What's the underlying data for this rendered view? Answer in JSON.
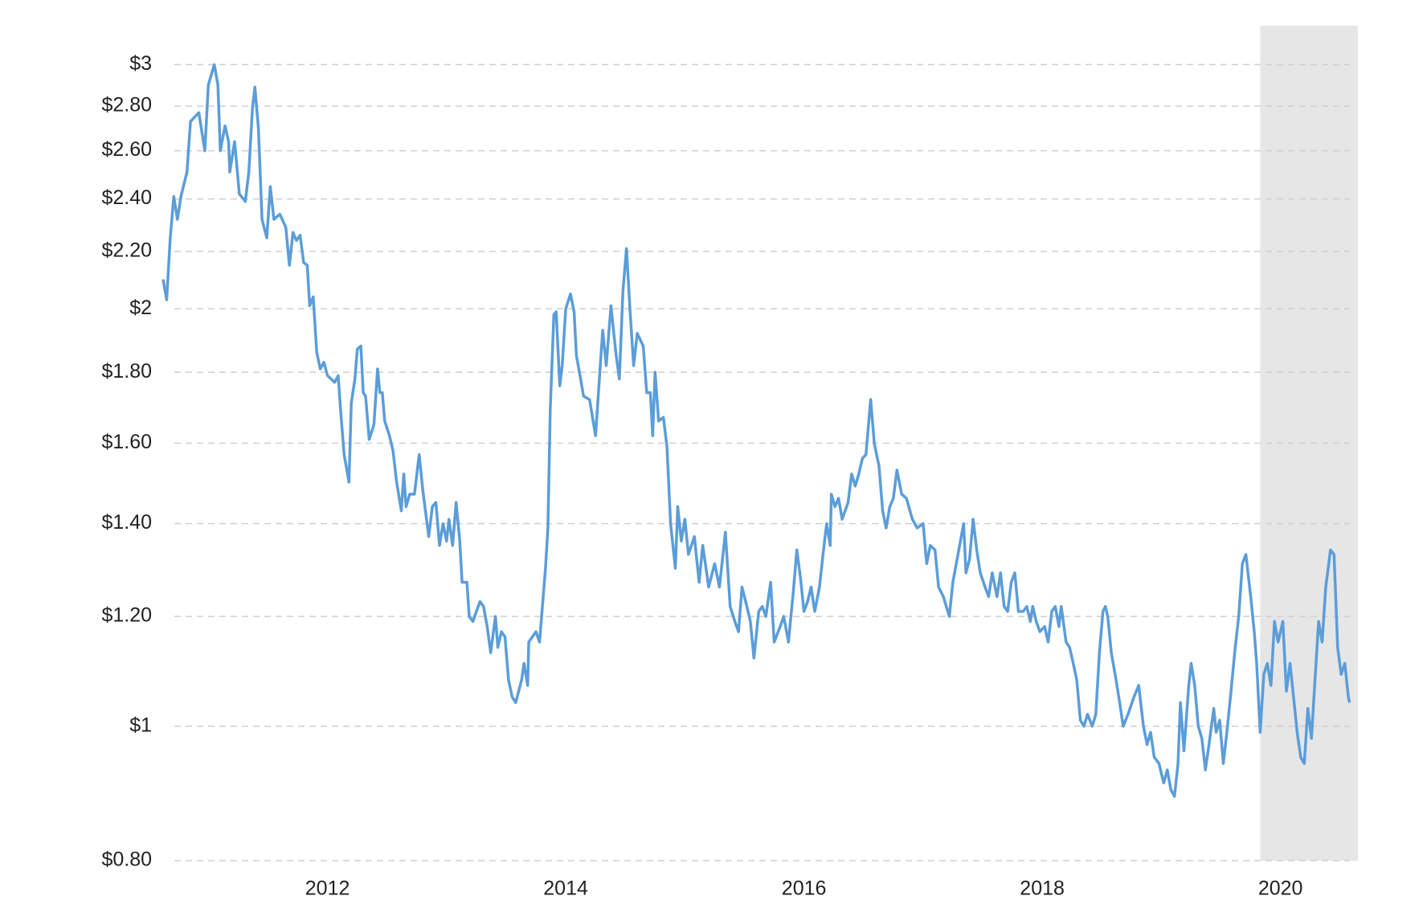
{
  "chart_data": {
    "type": "line",
    "x": [
      2010.62,
      2010.65,
      2010.68,
      2010.71,
      2010.74,
      2010.77,
      2010.82,
      2010.85,
      2010.92,
      2010.97,
      2011.0,
      2011.05,
      2011.08,
      2011.1,
      2011.14,
      2011.17,
      2011.18,
      2011.22,
      2011.26,
      2011.31,
      2011.34,
      2011.37,
      2011.39,
      2011.42,
      2011.45,
      2011.49,
      2011.52,
      2011.55,
      2011.6,
      2011.65,
      2011.68,
      2011.71,
      2011.74,
      2011.77,
      2011.8,
      2011.83,
      2011.85,
      2011.88,
      2011.91,
      2011.94,
      2011.97,
      2012.0,
      2012.06,
      2012.09,
      2012.11,
      2012.14,
      2012.18,
      2012.2,
      2012.23,
      2012.25,
      2012.28,
      2012.3,
      2012.32,
      2012.35,
      2012.39,
      2012.42,
      2012.44,
      2012.46,
      2012.48,
      2012.52,
      2012.55,
      2012.58,
      2012.62,
      2012.64,
      2012.66,
      2012.69,
      2012.73,
      2012.77,
      2012.8,
      2012.85,
      2012.88,
      2012.91,
      2012.94,
      2012.97,
      2013.0,
      2013.02,
      2013.05,
      2013.08,
      2013.11,
      2013.13,
      2013.17,
      2013.19,
      2013.22,
      2013.25,
      2013.28,
      2013.31,
      2013.34,
      2013.37,
      2013.41,
      2013.43,
      2013.46,
      2013.49,
      2013.52,
      2013.55,
      2013.58,
      2013.63,
      2013.65,
      2013.68,
      2013.69,
      2013.72,
      2013.75,
      2013.78,
      2013.83,
      2013.85,
      2013.87,
      2013.9,
      2013.92,
      2013.95,
      2013.97,
      2014.0,
      2014.04,
      2014.07,
      2014.09,
      2014.12,
      2014.15,
      2014.2,
      2014.25,
      2014.29,
      2014.31,
      2014.34,
      2014.38,
      2014.42,
      2014.45,
      2014.48,
      2014.51,
      2014.54,
      2014.57,
      2014.6,
      2014.65,
      2014.68,
      2014.71,
      2014.73,
      2014.75,
      2014.78,
      2014.82,
      2014.85,
      2014.88,
      2014.92,
      2014.94,
      2014.97,
      2015.0,
      2015.03,
      2015.08,
      2015.12,
      2015.15,
      2015.2,
      2015.25,
      2015.29,
      2015.34,
      2015.38,
      2015.42,
      2015.45,
      2015.48,
      2015.52,
      2015.55,
      2015.58,
      2015.62,
      2015.65,
      2015.68,
      2015.72,
      2015.75,
      2015.8,
      2015.83,
      2015.87,
      2015.91,
      2015.94,
      2015.97,
      2016.0,
      2016.03,
      2016.06,
      2016.09,
      2016.13,
      2016.16,
      2016.19,
      2016.22,
      2016.23,
      2016.26,
      2016.29,
      2016.32,
      2016.37,
      2016.4,
      2016.43,
      2016.46,
      2016.49,
      2016.52,
      2016.56,
      2016.59,
      2016.63,
      2016.66,
      2016.69,
      2016.72,
      2016.75,
      2016.78,
      2016.82,
      2016.86,
      2016.91,
      2016.95,
      2017.0,
      2017.03,
      2017.06,
      2017.1,
      2017.13,
      2017.17,
      2017.22,
      2017.25,
      2017.3,
      2017.34,
      2017.36,
      2017.39,
      2017.42,
      2017.45,
      2017.48,
      2017.52,
      2017.55,
      2017.58,
      2017.62,
      2017.65,
      2017.68,
      2017.71,
      2017.74,
      2017.77,
      2017.8,
      2017.84,
      2017.87,
      2017.9,
      2017.92,
      2017.95,
      2017.98,
      2018.02,
      2018.05,
      2018.08,
      2018.11,
      2018.14,
      2018.16,
      2018.2,
      2018.23,
      2018.26,
      2018.29,
      2018.32,
      2018.35,
      2018.38,
      2018.42,
      2018.45,
      2018.48,
      2018.51,
      2018.53,
      2018.55,
      2018.58,
      2018.62,
      2018.65,
      2018.68,
      2018.72,
      2018.77,
      2018.81,
      2018.85,
      2018.88,
      2018.91,
      2018.94,
      2018.98,
      2019.02,
      2019.05,
      2019.08,
      2019.11,
      2019.14,
      2019.16,
      2019.19,
      2019.23,
      2019.25,
      2019.28,
      2019.31,
      2019.34,
      2019.37,
      2019.4,
      2019.44,
      2019.46,
      2019.49,
      2019.52,
      2019.55,
      2019.58,
      2019.62,
      2019.65,
      2019.68,
      2019.71,
      2019.75,
      2019.78,
      2019.8,
      2019.83,
      2019.86,
      2019.89,
      2019.92,
      2019.95,
      2019.98,
      2020.02,
      2020.05,
      2020.08,
      2020.11,
      2020.14,
      2020.17,
      2020.2,
      2020.23,
      2020.26,
      2020.29,
      2020.32,
      2020.35,
      2020.38,
      2020.42,
      2020.45,
      2020.48,
      2020.51,
      2020.54,
      2020.57,
      2020.58
    ],
    "series": [
      {
        "color": "#5b9dd9",
        "values": [
          2.1,
          2.03,
          2.25,
          2.41,
          2.32,
          2.41,
          2.51,
          2.73,
          2.77,
          2.6,
          2.9,
          3.0,
          2.9,
          2.6,
          2.71,
          2.64,
          2.51,
          2.64,
          2.42,
          2.39,
          2.51,
          2.79,
          2.89,
          2.7,
          2.32,
          2.25,
          2.45,
          2.32,
          2.34,
          2.29,
          2.15,
          2.27,
          2.24,
          2.26,
          2.16,
          2.15,
          2.01,
          2.04,
          1.86,
          1.81,
          1.83,
          1.79,
          1.77,
          1.79,
          1.69,
          1.57,
          1.5,
          1.71,
          1.78,
          1.87,
          1.88,
          1.74,
          1.73,
          1.61,
          1.65,
          1.81,
          1.74,
          1.74,
          1.66,
          1.62,
          1.58,
          1.5,
          1.43,
          1.52,
          1.44,
          1.47,
          1.47,
          1.57,
          1.48,
          1.37,
          1.44,
          1.45,
          1.35,
          1.4,
          1.36,
          1.41,
          1.35,
          1.45,
          1.36,
          1.27,
          1.27,
          1.2,
          1.19,
          1.21,
          1.23,
          1.22,
          1.18,
          1.13,
          1.2,
          1.14,
          1.17,
          1.16,
          1.08,
          1.05,
          1.04,
          1.08,
          1.11,
          1.07,
          1.15,
          1.16,
          1.17,
          1.15,
          1.3,
          1.39,
          1.69,
          1.98,
          1.99,
          1.76,
          1.82,
          2.0,
          2.05,
          1.99,
          1.85,
          1.79,
          1.73,
          1.72,
          1.62,
          1.82,
          1.93,
          1.82,
          2.01,
          1.86,
          1.78,
          2.06,
          2.21,
          1.99,
          1.82,
          1.92,
          1.88,
          1.74,
          1.74,
          1.62,
          1.8,
          1.66,
          1.67,
          1.59,
          1.4,
          1.3,
          1.44,
          1.36,
          1.41,
          1.33,
          1.37,
          1.27,
          1.35,
          1.26,
          1.31,
          1.26,
          1.38,
          1.22,
          1.19,
          1.17,
          1.26,
          1.22,
          1.19,
          1.12,
          1.21,
          1.22,
          1.2,
          1.27,
          1.15,
          1.18,
          1.2,
          1.15,
          1.25,
          1.34,
          1.28,
          1.21,
          1.23,
          1.26,
          1.21,
          1.26,
          1.33,
          1.4,
          1.35,
          1.47,
          1.44,
          1.46,
          1.41,
          1.45,
          1.52,
          1.49,
          1.52,
          1.56,
          1.57,
          1.72,
          1.6,
          1.54,
          1.43,
          1.39,
          1.44,
          1.46,
          1.53,
          1.47,
          1.46,
          1.41,
          1.39,
          1.4,
          1.31,
          1.35,
          1.34,
          1.26,
          1.24,
          1.2,
          1.27,
          1.34,
          1.4,
          1.29,
          1.32,
          1.41,
          1.34,
          1.29,
          1.26,
          1.24,
          1.29,
          1.24,
          1.29,
          1.22,
          1.21,
          1.27,
          1.29,
          1.21,
          1.21,
          1.22,
          1.19,
          1.22,
          1.19,
          1.17,
          1.18,
          1.15,
          1.21,
          1.22,
          1.18,
          1.22,
          1.15,
          1.14,
          1.11,
          1.08,
          1.01,
          1.0,
          1.02,
          1.0,
          1.02,
          1.13,
          1.21,
          1.22,
          1.2,
          1.13,
          1.08,
          1.04,
          1.0,
          1.02,
          1.05,
          1.07,
          1.0,
          0.97,
          0.99,
          0.95,
          0.94,
          0.91,
          0.93,
          0.9,
          0.89,
          0.94,
          1.04,
          0.96,
          1.07,
          1.11,
          1.07,
          1.0,
          0.98,
          0.93,
          0.97,
          1.03,
          0.99,
          1.01,
          0.94,
          0.99,
          1.05,
          1.14,
          1.2,
          1.31,
          1.33,
          1.24,
          1.17,
          1.11,
          0.99,
          1.09,
          1.11,
          1.07,
          1.19,
          1.15,
          1.19,
          1.06,
          1.11,
          1.05,
          0.99,
          0.95,
          0.94,
          1.03,
          0.98,
          1.08,
          1.19,
          1.15,
          1.26,
          1.34,
          1.33,
          1.14,
          1.09,
          1.11,
          1.05,
          1.04
        ]
      }
    ],
    "xlim": [
      2010.62,
      2020.65
    ],
    "xticks": [
      2012,
      2014,
      2016,
      2018,
      2020
    ],
    "ylim": [
      0.8,
      3.2
    ],
    "ylog": true,
    "yticks": [
      {
        "value": 0.8,
        "label": "$0.80"
      },
      {
        "value": 1,
        "label": "$1"
      },
      {
        "value": 1.2,
        "label": "$1.20"
      },
      {
        "value": 1.4,
        "label": "$1.40"
      },
      {
        "value": 1.6,
        "label": "$1.60"
      },
      {
        "value": 1.8,
        "label": "$1.80"
      },
      {
        "value": 2,
        "label": "$2"
      },
      {
        "value": 2.2,
        "label": "$2.20"
      },
      {
        "value": 2.4,
        "label": "$2.40"
      },
      {
        "value": 2.6,
        "label": "$2.60"
      },
      {
        "value": 2.8,
        "label": "$2.80"
      },
      {
        "value": 3,
        "label": "$3"
      }
    ],
    "grid": true,
    "shaded_range": [
      2019.83,
      2020.65
    ],
    "shade_color": "#e6e6e6"
  }
}
